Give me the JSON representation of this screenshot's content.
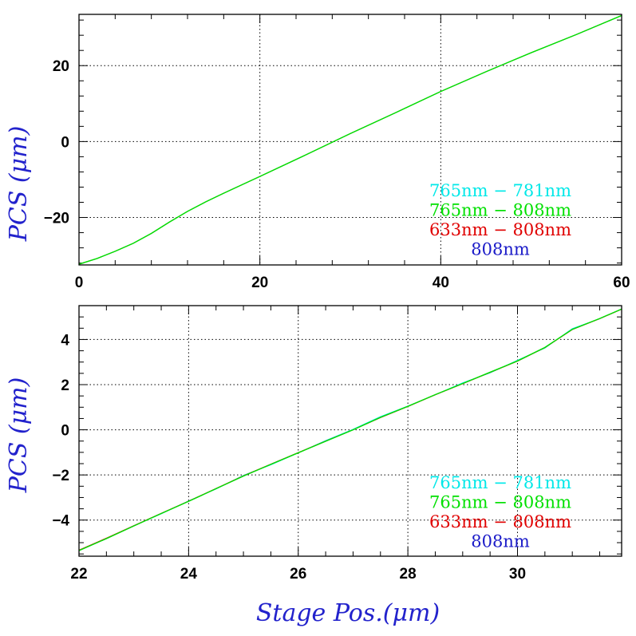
{
  "chart_data": [
    {
      "type": "line",
      "panel": "top",
      "title": "",
      "xlabel": "",
      "ylabel": "PCS (μm)",
      "xlim": [
        0,
        60
      ],
      "ylim": [
        -32.5,
        33.5
      ],
      "grid": true,
      "x_ticks": [
        0,
        20,
        40,
        60
      ],
      "x_tick_labels": [
        "0",
        "20",
        "40",
        "60"
      ],
      "y_ticks": [
        -20,
        0,
        20
      ],
      "y_tick_labels": [
        "−20",
        "0",
        "20"
      ],
      "legend_position": "bottom-right",
      "series": [
        {
          "name": "765nm − 781nm",
          "color": "#00e8e8",
          "x": [
            0,
            2,
            4,
            6,
            8,
            10,
            12,
            14,
            16,
            18,
            20,
            25,
            30,
            35,
            40,
            45,
            50,
            55,
            60
          ],
          "y": [
            -32.3,
            -30.8,
            -28.9,
            -26.8,
            -24.2,
            -21.2,
            -18.4,
            -15.9,
            -13.6,
            -11.4,
            -9.2,
            -3.6,
            2.1,
            7.6,
            13.2,
            18.4,
            23.4,
            28.2,
            33.2
          ]
        },
        {
          "name": "765nm − 808nm",
          "color": "#00e000",
          "x": [
            0,
            2,
            4,
            6,
            8,
            10,
            12,
            14,
            16,
            18,
            20,
            25,
            30,
            35,
            40,
            45,
            50,
            55,
            60
          ],
          "y": [
            -32.3,
            -30.8,
            -28.9,
            -26.8,
            -24.2,
            -21.2,
            -18.4,
            -15.9,
            -13.6,
            -11.4,
            -9.2,
            -3.6,
            2.1,
            7.6,
            13.2,
            18.4,
            23.4,
            28.2,
            33.2
          ]
        },
        {
          "name": "633nm − 808nm",
          "color": "#e00000",
          "x": [
            0,
            2,
            4,
            6,
            8,
            10,
            12,
            14,
            16,
            18,
            20,
            25,
            30,
            35,
            40,
            45,
            50,
            55,
            60
          ],
          "y": [
            -32.3,
            -30.8,
            -28.9,
            -26.8,
            -24.2,
            -21.2,
            -18.4,
            -15.9,
            -13.6,
            -11.4,
            -9.2,
            -3.6,
            2.1,
            7.6,
            13.2,
            18.4,
            23.4,
            28.2,
            33.2
          ]
        },
        {
          "name": "808nm",
          "color": "#1a1ac8",
          "x": [],
          "y": []
        }
      ]
    },
    {
      "type": "line",
      "panel": "bottom",
      "title": "",
      "xlabel": "Stage Pos.(μm)",
      "ylabel": "PCS (μm)",
      "xlim": [
        22,
        31.9
      ],
      "ylim": [
        -5.6,
        5.5
      ],
      "grid": true,
      "x_ticks": [
        22,
        24,
        26,
        28,
        30
      ],
      "x_tick_labels": [
        "22",
        "24",
        "26",
        "28",
        "30"
      ],
      "y_ticks": [
        -4,
        -2,
        0,
        2,
        4
      ],
      "y_tick_labels": [
        "−4",
        "−2",
        "0",
        "2",
        "4"
      ],
      "legend_position": "bottom-right",
      "series": [
        {
          "name": "765nm − 781nm",
          "color": "#00e8e8",
          "x": [
            22,
            22.5,
            23,
            23.5,
            24,
            24.5,
            25,
            25.5,
            26,
            26.5,
            27,
            27.5,
            28,
            28.5,
            29,
            29.5,
            30,
            30.5,
            31,
            31.5,
            31.9
          ],
          "y": [
            -5.35,
            -4.82,
            -4.25,
            -3.72,
            -3.15,
            -2.62,
            -2.02,
            -1.55,
            -1.02,
            -0.48,
            0.02,
            0.58,
            1.05,
            1.55,
            2.08,
            2.52,
            3.08,
            3.62,
            4.48,
            4.92,
            5.35
          ]
        },
        {
          "name": "765nm − 808nm",
          "color": "#00e000",
          "x": [
            22,
            22.5,
            23,
            23.5,
            24,
            24.5,
            25,
            25.5,
            26,
            26.5,
            27,
            27.5,
            28,
            28.5,
            29,
            29.5,
            30,
            30.5,
            31,
            31.5,
            31.9
          ],
          "y": [
            -5.35,
            -4.82,
            -4.26,
            -3.71,
            -3.17,
            -2.61,
            -2.05,
            -1.53,
            -1.02,
            -0.51,
            0.0,
            0.55,
            1.04,
            1.56,
            2.05,
            2.55,
            3.05,
            3.65,
            4.45,
            4.93,
            5.35
          ]
        },
        {
          "name": "633nm − 808nm",
          "color": "#e00000",
          "x": [
            22,
            22.5,
            23,
            23.5,
            24,
            24.5,
            25,
            25.5,
            26,
            26.5,
            27,
            27.5,
            28,
            28.5,
            29,
            29.5,
            30,
            30.5,
            31,
            31.5,
            31.9
          ],
          "y": [
            -5.33,
            -4.8,
            -4.25,
            -3.7,
            -3.16,
            -2.6,
            -2.04,
            -1.52,
            -1.01,
            -0.5,
            0.0,
            0.54,
            1.03,
            1.55,
            2.04,
            2.54,
            3.04,
            3.64,
            4.44,
            4.92,
            5.34
          ]
        },
        {
          "name": "808nm",
          "color": "#1a1ac8",
          "x": [],
          "y": []
        }
      ]
    }
  ]
}
